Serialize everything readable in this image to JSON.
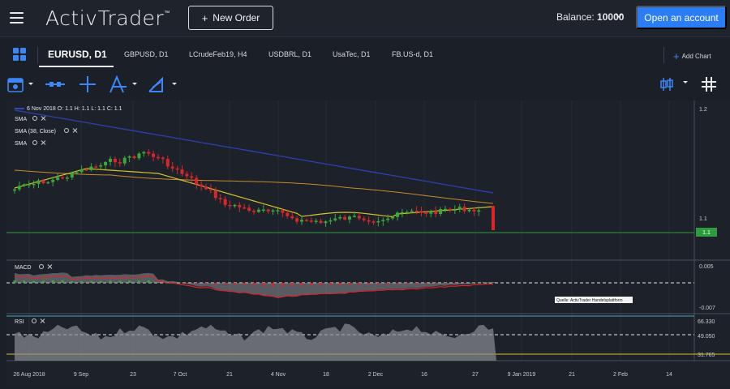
{
  "header": {
    "logo_text": "ActivTrader",
    "logo_tm": "™",
    "new_order_label": "New Order",
    "balance_label": "Balance:",
    "balance_value": "10000",
    "open_account_label": "Open an account"
  },
  "tabs": [
    {
      "label": "EURUSD, D1",
      "active": true
    },
    {
      "label": "GBPUSD, D1"
    },
    {
      "label": "LCrudeFeb19, H4"
    },
    {
      "label": "USDBRL, D1"
    },
    {
      "label": "UsaTec, D1"
    },
    {
      "label": "FB.US-d, D1"
    }
  ],
  "add_chart_label": "Add Chart",
  "toolbar_icons": [
    "calendar-icon",
    "horizontal-line-icon",
    "crosshair-icon",
    "fibonacci-icon",
    "trendline-icon",
    "candle-type-icon",
    "grid-toggle-icon"
  ],
  "chart": {
    "ohlc_line": "6 Nov 2018 O: 1.1  H: 1.1  L: 1.1  C: 1.1",
    "indicators": [
      "SMA",
      "SMA  (38, Close)",
      "SMA"
    ],
    "price_ticks": [
      "1.2",
      "1.1"
    ],
    "current_price_label": "1.1",
    "macd_label": "MACD",
    "macd_ticks": [
      "0.005",
      "-0.007"
    ],
    "rsi_label": "RSI",
    "rsi_ticks": [
      "66.330",
      "49.050",
      "31.765"
    ],
    "source_note": "Quelle: ActivTrader Handelsplattform",
    "x_ticks": [
      "26 Aug 2018",
      "9 Sep",
      "23",
      "7 Oct",
      "21",
      "4 Nov",
      "18",
      "2 Dec",
      "16",
      "27",
      "9 Jan 2019",
      "21",
      "2 Feb",
      "14"
    ],
    "colors": {
      "bull": "#3aa83a",
      "bear": "#d9262b",
      "sma_blue": "#2c3ea8",
      "sma_orange": "#c98a2b",
      "sma_yellow": "#d6c22b",
      "price_line": "#2e9b3f",
      "accent": "#2b7df5"
    }
  }
}
